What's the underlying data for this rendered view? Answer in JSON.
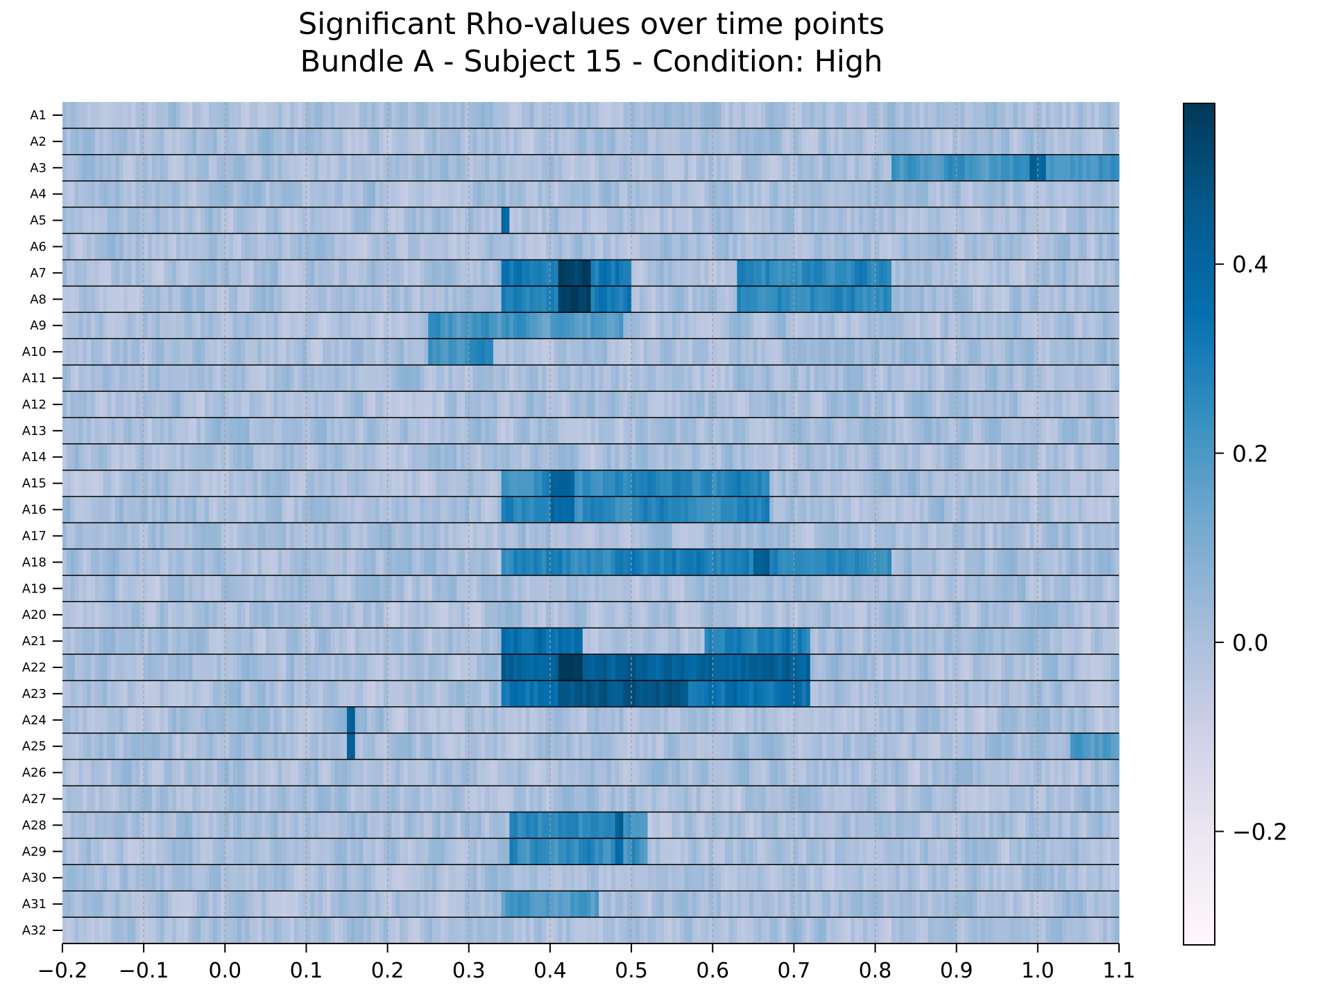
{
  "chart_data": {
    "type": "heatmap",
    "title": [
      "Significant Rho-values over time points",
      "Bundle A - Subject 15 - Condition: High"
    ],
    "xlabel": "",
    "ylabel": "",
    "xlim": [
      -0.2,
      1.1
    ],
    "x_ticks": [
      -0.2,
      -0.1,
      0.0,
      0.1,
      0.2,
      0.3,
      0.4,
      0.5,
      0.6,
      0.7,
      0.8,
      0.9,
      1.0,
      1.1
    ],
    "x_tick_labels": [
      "−0.2",
      "−0.1",
      "0.0",
      "0.1",
      "0.2",
      "0.3",
      "0.4",
      "0.5",
      "0.6",
      "0.7",
      "0.8",
      "0.9",
      "1.0",
      "1.1"
    ],
    "time_step": 0.005,
    "rows": [
      "A1",
      "A2",
      "A3",
      "A4",
      "A5",
      "A6",
      "A7",
      "A8",
      "A9",
      "A10",
      "A11",
      "A12",
      "A13",
      "A14",
      "A15",
      "A16",
      "A17",
      "A18",
      "A19",
      "A20",
      "A21",
      "A22",
      "A23",
      "A24",
      "A25",
      "A26",
      "A27",
      "A28",
      "A29",
      "A30",
      "A31",
      "A32"
    ],
    "colormap": "PuBu",
    "colorbar": {
      "range": [
        -0.32,
        0.57
      ],
      "ticks": [
        -0.2,
        0.0,
        0.2,
        0.4
      ],
      "tick_labels": [
        "−0.2",
        "0.0",
        "0.2",
        "0.4"
      ]
    },
    "vertical_dashed_lines_at": [
      -0.1,
      0.0,
      0.1,
      0.2,
      0.3,
      0.4,
      0.5,
      0.6,
      0.7,
      0.8,
      0.9,
      1.0
    ],
    "grid": false,
    "baseline_value": 0.0,
    "noise_amplitude": 0.09,
    "significant_regions": [
      {
        "row": "A3",
        "from": 0.82,
        "to": 1.1,
        "value": 0.18
      },
      {
        "row": "A3",
        "from": 0.99,
        "to": 1.01,
        "value": 0.38
      },
      {
        "row": "A5",
        "from": 0.34,
        "to": 0.35,
        "value": 0.34
      },
      {
        "row": "A7",
        "from": 0.34,
        "to": 0.5,
        "value": 0.28
      },
      {
        "row": "A7",
        "from": 0.41,
        "to": 0.45,
        "value": 0.5
      },
      {
        "row": "A7",
        "from": 0.63,
        "to": 0.82,
        "value": 0.23
      },
      {
        "row": "A8",
        "from": 0.34,
        "to": 0.5,
        "value": 0.28
      },
      {
        "row": "A8",
        "from": 0.41,
        "to": 0.45,
        "value": 0.53
      },
      {
        "row": "A8",
        "from": 0.63,
        "to": 0.82,
        "value": 0.23
      },
      {
        "row": "A9",
        "from": 0.25,
        "to": 0.49,
        "value": 0.16
      },
      {
        "row": "A10",
        "from": 0.25,
        "to": 0.33,
        "value": 0.2
      },
      {
        "row": "A15",
        "from": 0.34,
        "to": 0.67,
        "value": 0.22
      },
      {
        "row": "A15",
        "from": 0.4,
        "to": 0.43,
        "value": 0.36
      },
      {
        "row": "A16",
        "from": 0.34,
        "to": 0.67,
        "value": 0.22
      },
      {
        "row": "A16",
        "from": 0.4,
        "to": 0.43,
        "value": 0.36
      },
      {
        "row": "A18",
        "from": 0.34,
        "to": 0.82,
        "value": 0.24
      },
      {
        "row": "A18",
        "from": 0.65,
        "to": 0.67,
        "value": 0.38
      },
      {
        "row": "A21",
        "from": 0.34,
        "to": 0.44,
        "value": 0.33
      },
      {
        "row": "A21",
        "from": 0.59,
        "to": 0.72,
        "value": 0.26
      },
      {
        "row": "A22",
        "from": 0.34,
        "to": 0.72,
        "value": 0.38
      },
      {
        "row": "A22",
        "from": 0.41,
        "to": 0.44,
        "value": 0.57
      },
      {
        "row": "A23",
        "from": 0.34,
        "to": 0.72,
        "value": 0.3
      },
      {
        "row": "A23",
        "from": 0.41,
        "to": 0.57,
        "value": 0.44
      },
      {
        "row": "A24",
        "from": 0.15,
        "to": 0.16,
        "value": 0.38
      },
      {
        "row": "A25",
        "from": 0.15,
        "to": 0.16,
        "value": 0.38
      },
      {
        "row": "A25",
        "from": 1.04,
        "to": 1.1,
        "value": 0.18
      },
      {
        "row": "A28",
        "from": 0.35,
        "to": 0.52,
        "value": 0.2
      },
      {
        "row": "A28",
        "from": 0.48,
        "to": 0.49,
        "value": 0.38
      },
      {
        "row": "A29",
        "from": 0.35,
        "to": 0.52,
        "value": 0.2
      },
      {
        "row": "A29",
        "from": 0.48,
        "to": 0.49,
        "value": 0.38
      },
      {
        "row": "A31",
        "from": 0.34,
        "to": 0.46,
        "value": 0.15
      }
    ]
  }
}
